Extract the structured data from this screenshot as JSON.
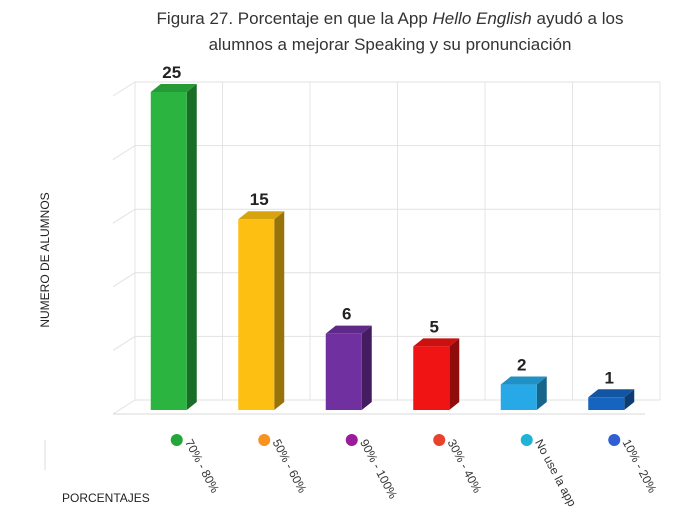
{
  "chart_data": {
    "type": "bar3d",
    "title": [
      "Figura 27. Porcentaje en que la App",
      "Hello English",
      "ayudó a los",
      "alumnos a mejorar Speaking y su pronunciación"
    ],
    "ylabel": "NUMERO DE ALUMNOS",
    "xlabel": "PORCENTAJES",
    "categories": [
      "70% - 80%",
      "50% - 60%",
      "90% - 100%",
      "30% - 40%",
      "No use la app",
      "10% - 20%"
    ],
    "values": [
      25,
      15,
      6,
      5,
      2,
      1
    ],
    "colors": [
      "#2bb540",
      "#fdc012",
      "#7030a0",
      "#f01414",
      "#27a9e8",
      "#1565c0"
    ],
    "marker_colors": [
      "#22a83a",
      "#f7931e",
      "#9b1b9b",
      "#e8412c",
      "#1fb3d8",
      "#2f5fd0"
    ],
    "ylim": [
      0,
      25
    ],
    "yticks": [
      0,
      5,
      10,
      15,
      20,
      25
    ],
    "grid": true
  }
}
